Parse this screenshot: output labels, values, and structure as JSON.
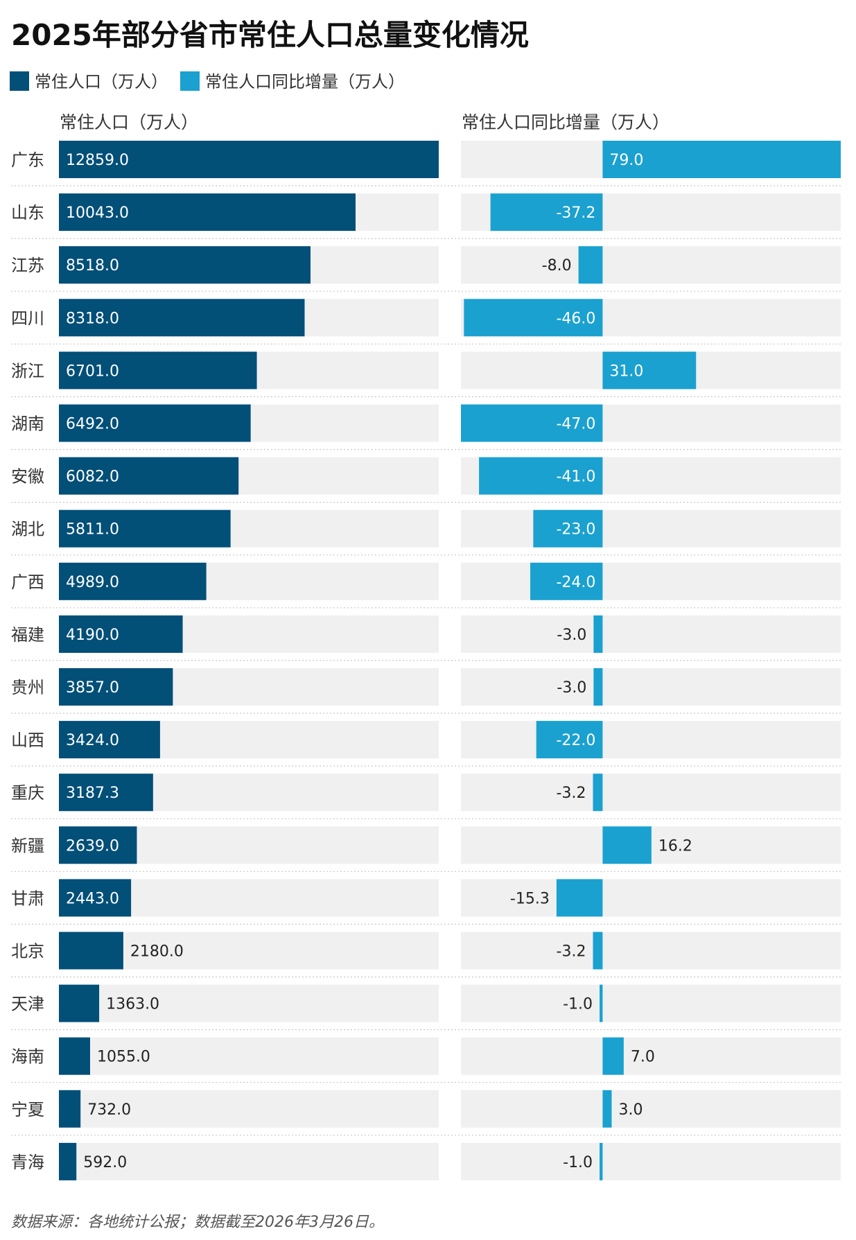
{
  "chart_data": {
    "type": "bar",
    "orientation": "horizontal",
    "title": "2025年部分省市常住人口总量变化情况",
    "legend": [
      {
        "name": "常住人口（万人）",
        "color": "#024f78"
      },
      {
        "name": "常住人口同比增量（万人）",
        "color": "#1aa1d0"
      }
    ],
    "categories": [
      "广东",
      "山东",
      "江苏",
      "四川",
      "浙江",
      "湖南",
      "安徽",
      "湖北",
      "广西",
      "福建",
      "贵州",
      "山西",
      "重庆",
      "新疆",
      "甘肃",
      "北京",
      "天津",
      "海南",
      "宁夏",
      "青海"
    ],
    "series": [
      {
        "name": "常住人口（万人）",
        "panel_title": "常住人口（万人）",
        "color": "#024f78",
        "values": [
          12859.0,
          10043.0,
          8518.0,
          8318.0,
          6701.0,
          6492.0,
          6082.0,
          5811.0,
          4989.0,
          4190.0,
          3857.0,
          3424.0,
          3187.3,
          2639.0,
          2443.0,
          2180.0,
          1363.0,
          1055.0,
          732.0,
          592.0
        ],
        "labels": [
          "12859.0",
          "10043.0",
          "8518.0",
          "8318.0",
          "6701.0",
          "6492.0",
          "6082.0",
          "5811.0",
          "4989.0",
          "4190.0",
          "3857.0",
          "3424.0",
          "3187.3",
          "2639.0",
          "2443.0",
          "2180.0",
          "1363.0",
          "1055.0",
          "732.0",
          "592.0"
        ],
        "xlim": [
          0,
          12859
        ]
      },
      {
        "name": "常住人口同比增量（万人）",
        "panel_title": "常住人口同比增量（万人）",
        "color": "#1aa1d0",
        "values": [
          79.0,
          -37.2,
          -8.0,
          -46.0,
          31.0,
          -47.0,
          -41.0,
          -23.0,
          -24.0,
          -3.0,
          -3.0,
          -22.0,
          -3.2,
          16.2,
          -15.3,
          -3.2,
          -1.0,
          7.0,
          3.0,
          -1.0
        ],
        "labels": [
          "79.0",
          "-37.2",
          "-8.0",
          "-46.0",
          "31.0",
          "-47.0",
          "-41.0",
          "-23.0",
          "-24.0",
          "-3.0",
          "-3.0",
          "-22.0",
          "-3.2",
          "16.2",
          "-15.3",
          "-3.2",
          "-1.0",
          "7.0",
          "3.0",
          "-1.0"
        ],
        "xlim": [
          -47,
          79
        ]
      }
    ],
    "source": "数据来源：各地统计公报；数据截至2026年3月26日。",
    "colors": {
      "track": "#f0f0f0",
      "divider": "#c8c8c8"
    }
  }
}
